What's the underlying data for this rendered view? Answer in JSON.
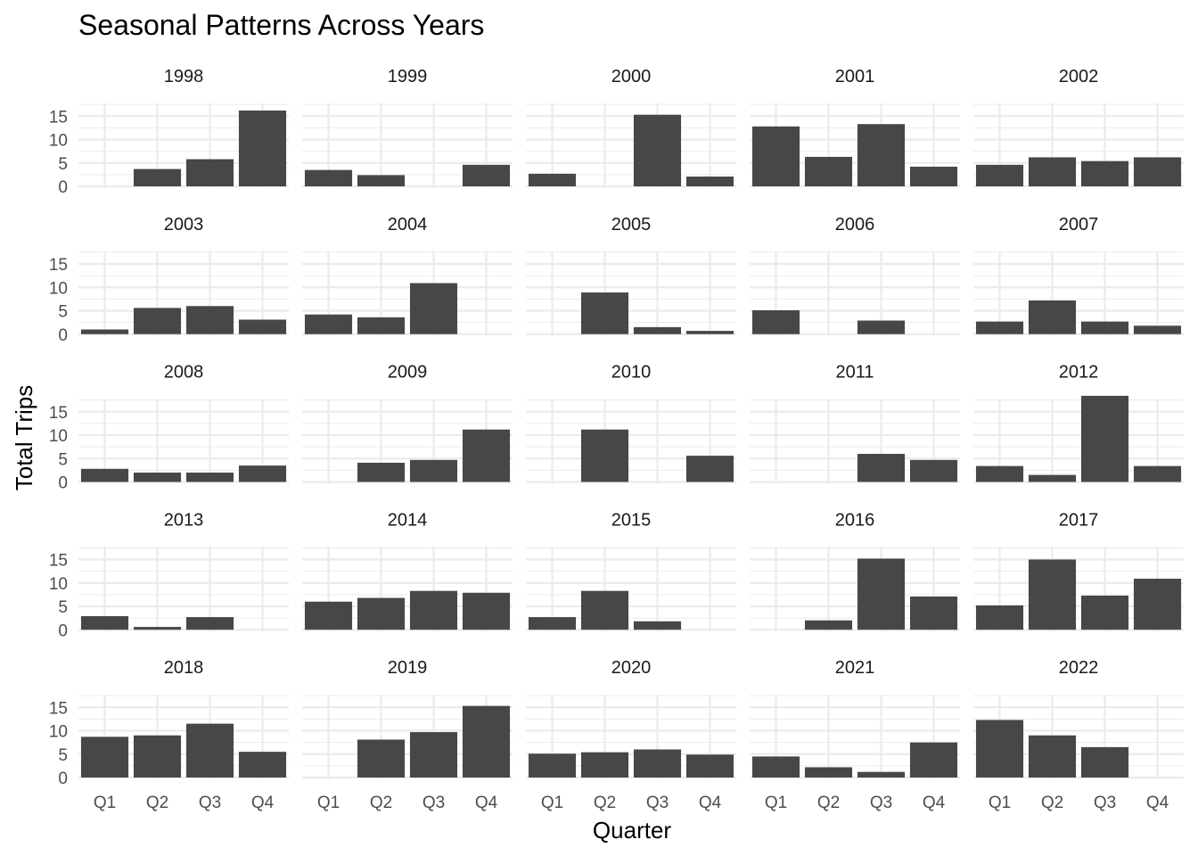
{
  "chart_data": {
    "type": "bar",
    "title": "Seasonal Patterns Across Years",
    "xlabel": "Quarter",
    "ylabel": "Total Trips",
    "categories": [
      "Q1",
      "Q2",
      "Q3",
      "Q4"
    ],
    "y_ticks": [
      0,
      5,
      10,
      15
    ],
    "ylim": [
      0,
      18
    ],
    "grid": true,
    "layout": "facet_wrap, 5 columns, shared axes",
    "colors": {
      "bar": "#474747",
      "grid": "#ebebeb",
      "strip_text": "#1a1a1a",
      "tick_text": "#4d4d4d"
    },
    "panels": [
      {
        "year": "1998",
        "values": [
          0,
          3.7,
          5.8,
          16.2
        ]
      },
      {
        "year": "1999",
        "values": [
          3.5,
          2.4,
          0,
          4.6
        ]
      },
      {
        "year": "2000",
        "values": [
          2.7,
          0,
          15.3,
          2.1
        ]
      },
      {
        "year": "2001",
        "values": [
          12.8,
          6.3,
          13.3,
          4.2
        ]
      },
      {
        "year": "2002",
        "values": [
          4.6,
          6.2,
          5.4,
          6.2
        ]
      },
      {
        "year": "2003",
        "values": [
          1.0,
          5.6,
          6.0,
          3.1
        ]
      },
      {
        "year": "2004",
        "values": [
          4.2,
          3.6,
          10.9,
          0
        ]
      },
      {
        "year": "2005",
        "values": [
          0,
          8.9,
          1.5,
          0.7
        ]
      },
      {
        "year": "2006",
        "values": [
          5.1,
          0,
          2.9,
          0
        ]
      },
      {
        "year": "2007",
        "values": [
          2.7,
          7.2,
          2.7,
          1.8
        ]
      },
      {
        "year": "2008",
        "values": [
          2.8,
          2.0,
          2.0,
          3.5
        ]
      },
      {
        "year": "2009",
        "values": [
          0,
          4.1,
          4.7,
          11.2
        ]
      },
      {
        "year": "2010",
        "values": [
          0,
          11.2,
          0,
          5.6
        ]
      },
      {
        "year": "2011",
        "values": [
          0,
          0,
          6.0,
          4.7
        ]
      },
      {
        "year": "2012",
        "values": [
          3.4,
          1.5,
          18.4,
          3.4
        ]
      },
      {
        "year": "2013",
        "values": [
          2.9,
          0.6,
          2.7,
          0
        ]
      },
      {
        "year": "2014",
        "values": [
          6.0,
          6.8,
          8.3,
          7.9
        ]
      },
      {
        "year": "2015",
        "values": [
          2.7,
          8.3,
          1.8,
          0
        ]
      },
      {
        "year": "2016",
        "values": [
          0,
          2.0,
          15.2,
          7.1
        ]
      },
      {
        "year": "2017",
        "values": [
          5.2,
          15.0,
          7.3,
          10.9
        ]
      },
      {
        "year": "2018",
        "values": [
          8.7,
          9.0,
          11.5,
          5.5
        ]
      },
      {
        "year": "2019",
        "values": [
          0,
          8.1,
          9.7,
          15.3
        ]
      },
      {
        "year": "2020",
        "values": [
          5.1,
          5.4,
          6.0,
          4.9
        ]
      },
      {
        "year": "2021",
        "values": [
          4.5,
          2.2,
          1.2,
          7.5
        ]
      },
      {
        "year": "2022",
        "values": [
          12.3,
          9.0,
          6.5,
          0
        ]
      }
    ]
  }
}
